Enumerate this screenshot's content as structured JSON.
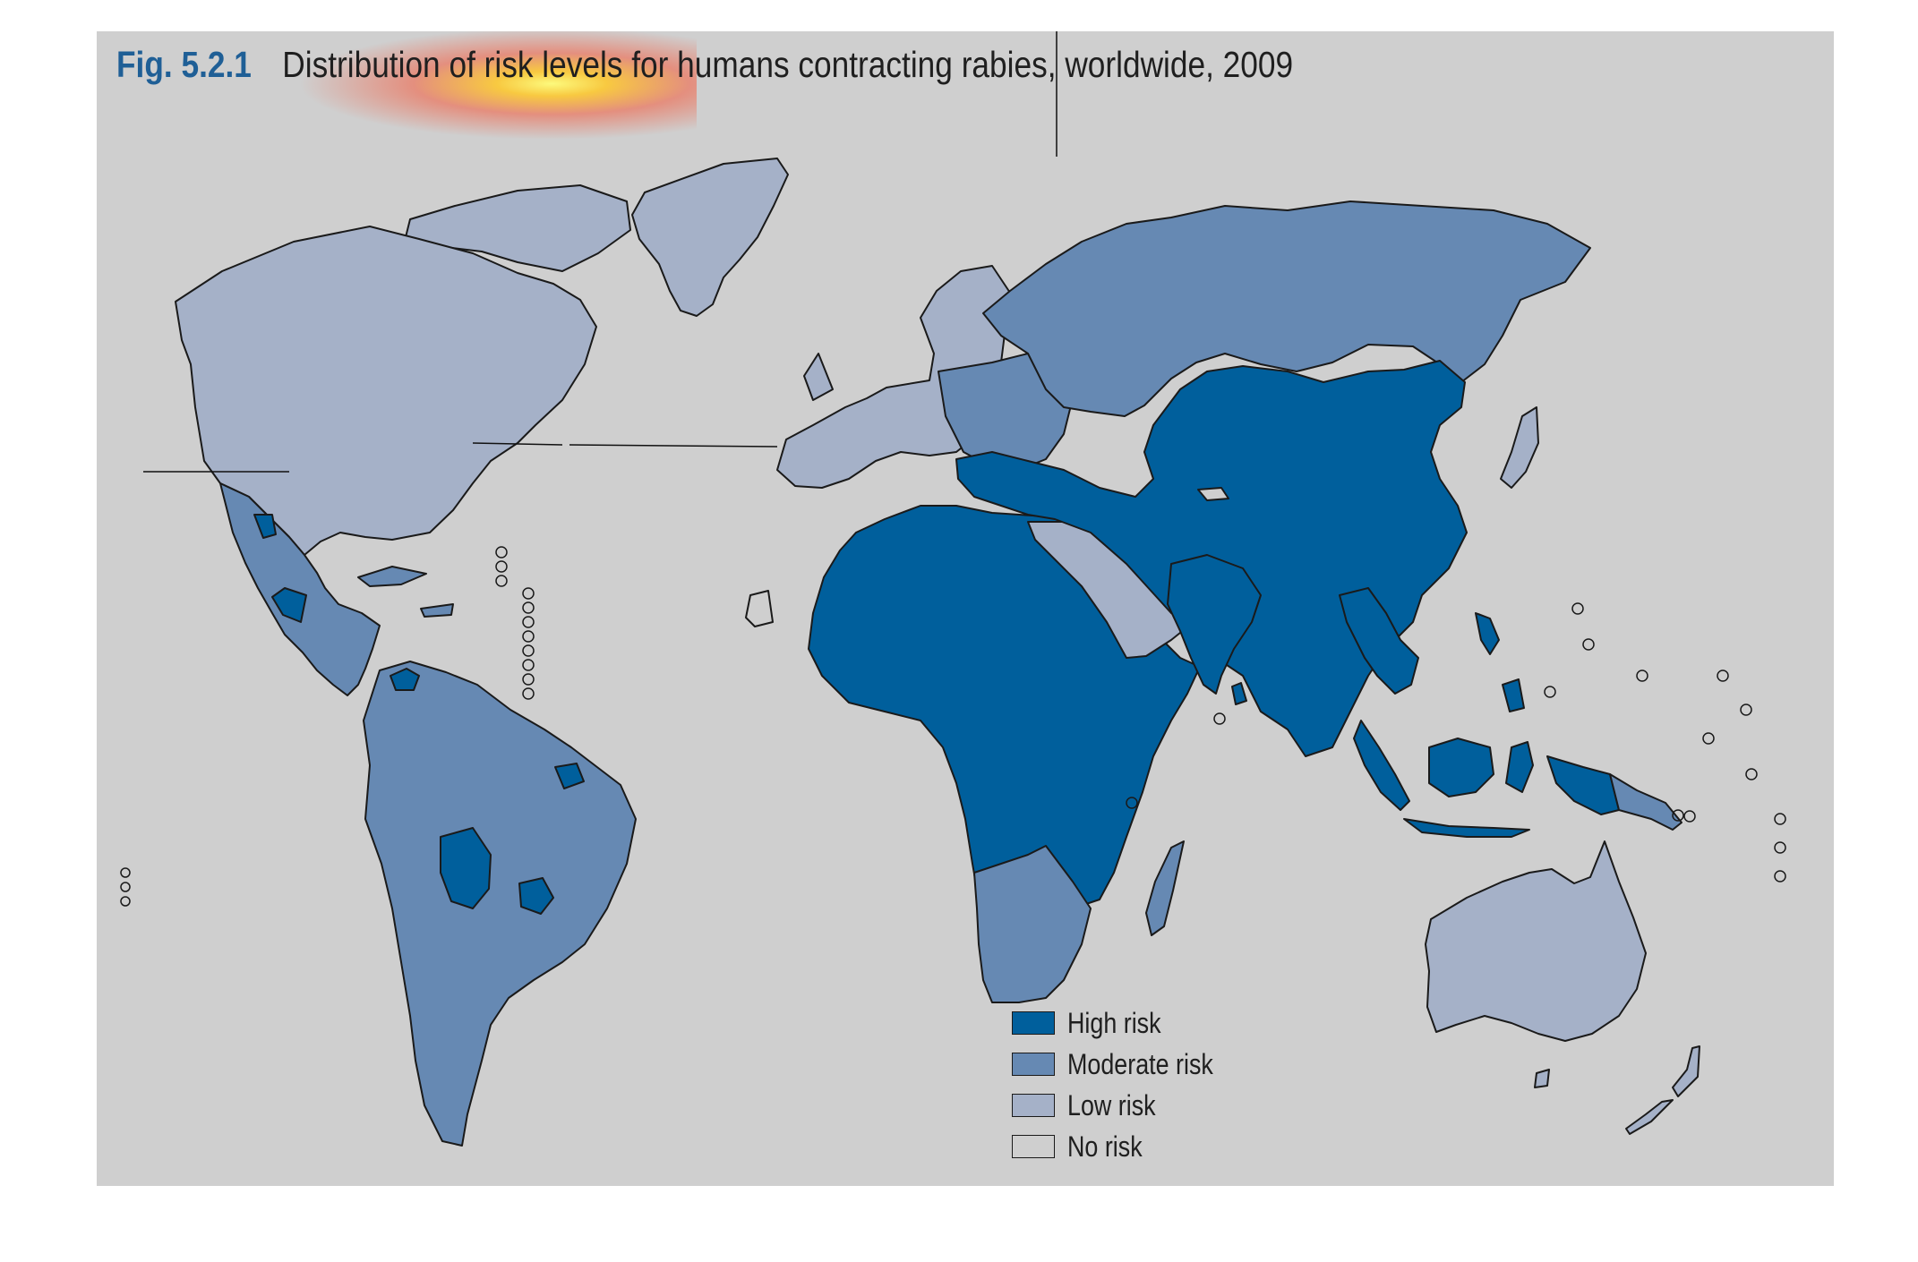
{
  "figure": {
    "number": "Fig. 5.2.1",
    "title": "Distribution of risk levels for humans contracting rabies, worldwide, 2009"
  },
  "legend": [
    {
      "label": "High risk",
      "color": "#005f9c"
    },
    {
      "label": "Moderate risk",
      "color": "#6689b3"
    },
    {
      "label": "Low risk",
      "color": "#a5b1c8"
    },
    {
      "label": "No risk",
      "color": "#cfcfcf"
    }
  ],
  "regions": [
    {
      "name": "North America",
      "risk": "Low risk"
    },
    {
      "name": "Greenland",
      "risk": "Low risk"
    },
    {
      "name": "Mexico and Central America",
      "risk": "Moderate risk"
    },
    {
      "name": "South America",
      "risk": "Moderate risk"
    },
    {
      "name": "Western Europe",
      "risk": "Low risk"
    },
    {
      "name": "Eastern Europe",
      "risk": "Moderate risk"
    },
    {
      "name": "Russia",
      "risk": "Moderate risk"
    },
    {
      "name": "Africa",
      "risk": "High risk"
    },
    {
      "name": "Southern Africa",
      "risk": "Moderate risk"
    },
    {
      "name": "Arabian Peninsula",
      "risk": "Low risk"
    },
    {
      "name": "Middle East and Asia",
      "risk": "High risk"
    },
    {
      "name": "Japan",
      "risk": "Low risk"
    },
    {
      "name": "Southeast Asia",
      "risk": "High risk"
    },
    {
      "name": "Australia",
      "risk": "Low risk"
    },
    {
      "name": "New Zealand",
      "risk": "Low risk"
    },
    {
      "name": "Western Sahara",
      "risk": "No risk"
    }
  ]
}
